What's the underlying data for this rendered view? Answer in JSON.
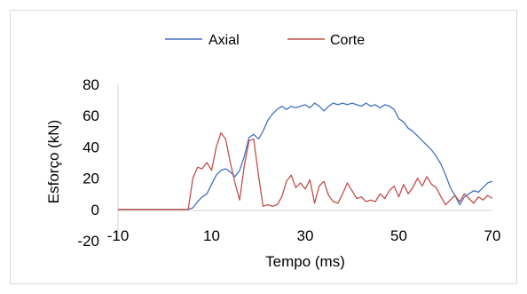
{
  "chart_data": {
    "type": "line",
    "title": "",
    "xlabel": "Tempo (ms)",
    "ylabel": "Esforço (kN)",
    "xlim": [
      -10,
      70
    ],
    "ylim": [
      -20,
      80
    ],
    "x_ticks": [
      -10,
      10,
      30,
      50,
      70
    ],
    "y_ticks": [
      -20,
      0,
      20,
      40,
      60,
      80
    ],
    "grid": false,
    "legend": "top",
    "series": [
      {
        "name": "Axial",
        "color": "#4472c4",
        "x": [
          -10,
          5,
          6,
          7,
          8,
          9,
          10,
          11,
          12,
          13,
          14,
          15,
          16,
          17,
          18,
          19,
          20,
          21,
          22,
          23,
          24,
          25,
          26,
          27,
          28,
          29,
          30,
          31,
          32,
          33,
          34,
          35,
          36,
          37,
          38,
          39,
          40,
          41,
          42,
          43,
          44,
          45,
          46,
          47,
          48,
          49,
          50,
          51,
          52,
          53,
          54,
          55,
          56,
          57,
          58,
          59,
          60,
          61,
          62,
          63,
          64,
          65,
          66,
          67,
          68,
          69,
          70
        ],
        "y": [
          0,
          0,
          1,
          5,
          8,
          10,
          16,
          22,
          25,
          26,
          24,
          21,
          25,
          34,
          46,
          48,
          45,
          50,
          57,
          61,
          64,
          66,
          64,
          66,
          65,
          66,
          67,
          65,
          68,
          66,
          63,
          66,
          68,
          67,
          68,
          67,
          68,
          67,
          66,
          68,
          66,
          67,
          65,
          67,
          66,
          64,
          58,
          56,
          52,
          50,
          47,
          44,
          41,
          38,
          34,
          29,
          22,
          14,
          9,
          3,
          8,
          10,
          12,
          11,
          14,
          17,
          18
        ]
      },
      {
        "name": "Corte",
        "color": "#c0504d",
        "x": [
          -10,
          5,
          6,
          7,
          8,
          9,
          10,
          11,
          12,
          13,
          14,
          15,
          16,
          17,
          18,
          19,
          20,
          21,
          22,
          23,
          24,
          25,
          26,
          27,
          28,
          29,
          30,
          31,
          32,
          33,
          34,
          35,
          36,
          37,
          38,
          39,
          40,
          41,
          42,
          43,
          44,
          45,
          46,
          47,
          48,
          49,
          50,
          51,
          52,
          53,
          54,
          55,
          56,
          57,
          58,
          59,
          60,
          61,
          62,
          63,
          64,
          65,
          66,
          67,
          68,
          69,
          70
        ],
        "y": [
          0,
          0,
          20,
          27,
          26,
          30,
          25,
          40,
          49,
          45,
          30,
          17,
          6,
          28,
          44,
          45,
          22,
          2,
          3,
          2,
          3,
          8,
          18,
          22,
          14,
          17,
          13,
          19,
          4,
          15,
          18,
          9,
          5,
          4,
          10,
          17,
          12,
          7,
          8,
          5,
          6,
          5,
          10,
          7,
          12,
          15,
          8,
          16,
          10,
          14,
          20,
          15,
          21,
          16,
          14,
          8,
          3,
          6,
          9,
          5,
          10,
          7,
          4,
          8,
          6,
          9,
          7
        ]
      }
    ]
  }
}
